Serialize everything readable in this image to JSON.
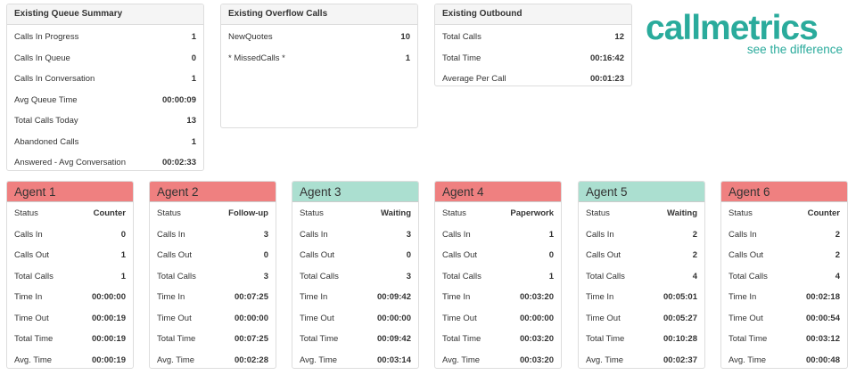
{
  "queue_summary": {
    "title": "Existing Queue Summary",
    "rows": [
      {
        "label": "Calls In Progress",
        "value": "1"
      },
      {
        "label": "Calls In Queue",
        "value": "0"
      },
      {
        "label": "Calls In Conversation",
        "value": "1"
      },
      {
        "label": "Avg Queue Time",
        "value": "00:00:09"
      },
      {
        "label": "Total Calls Today",
        "value": "13"
      },
      {
        "label": "Abandoned Calls",
        "value": "1"
      },
      {
        "label": "Answered - Avg Conversation",
        "value": "00:02:33"
      }
    ]
  },
  "overflow_calls": {
    "title": "Existing Overflow Calls",
    "rows": [
      {
        "label": "NewQuotes",
        "value": "10"
      },
      {
        "label": "* MissedCalls *",
        "value": "1"
      }
    ]
  },
  "outbound": {
    "title": "Existing Outbound",
    "rows": [
      {
        "label": "Total Calls",
        "value": "12"
      },
      {
        "label": "Total Time",
        "value": "00:16:42"
      },
      {
        "label": "Average Per Call",
        "value": "00:01:23"
      }
    ]
  },
  "logo": {
    "name": "callmetrics",
    "tagline": "see the difference",
    "color": "#2aab9c"
  },
  "status_colors": {
    "busy": "#ef8080",
    "waiting": "#abdfd0"
  },
  "agents": [
    {
      "name": "Agent 1",
      "status_color": "red",
      "rows": [
        {
          "label": "Status",
          "value": "Counter"
        },
        {
          "label": "Calls In",
          "value": "0"
        },
        {
          "label": "Calls Out",
          "value": "1"
        },
        {
          "label": "Total Calls",
          "value": "1"
        },
        {
          "label": "Time In",
          "value": "00:00:00"
        },
        {
          "label": "Time Out",
          "value": "00:00:19"
        },
        {
          "label": "Total Time",
          "value": "00:00:19"
        },
        {
          "label": "Avg. Time",
          "value": "00:00:19"
        }
      ]
    },
    {
      "name": "Agent 2",
      "status_color": "red",
      "rows": [
        {
          "label": "Status",
          "value": "Follow-up"
        },
        {
          "label": "Calls In",
          "value": "3"
        },
        {
          "label": "Calls Out",
          "value": "0"
        },
        {
          "label": "Total Calls",
          "value": "3"
        },
        {
          "label": "Time In",
          "value": "00:07:25"
        },
        {
          "label": "Time Out",
          "value": "00:00:00"
        },
        {
          "label": "Total Time",
          "value": "00:07:25"
        },
        {
          "label": "Avg. Time",
          "value": "00:02:28"
        }
      ]
    },
    {
      "name": "Agent 3",
      "status_color": "green",
      "rows": [
        {
          "label": "Status",
          "value": "Waiting"
        },
        {
          "label": "Calls In",
          "value": "3"
        },
        {
          "label": "Calls Out",
          "value": "0"
        },
        {
          "label": "Total Calls",
          "value": "3"
        },
        {
          "label": "Time In",
          "value": "00:09:42"
        },
        {
          "label": "Time Out",
          "value": "00:00:00"
        },
        {
          "label": "Total Time",
          "value": "00:09:42"
        },
        {
          "label": "Avg. Time",
          "value": "00:03:14"
        }
      ]
    },
    {
      "name": "Agent 4",
      "status_color": "red",
      "rows": [
        {
          "label": "Status",
          "value": "Paperwork"
        },
        {
          "label": "Calls In",
          "value": "1"
        },
        {
          "label": "Calls Out",
          "value": "0"
        },
        {
          "label": "Total Calls",
          "value": "1"
        },
        {
          "label": "Time In",
          "value": "00:03:20"
        },
        {
          "label": "Time Out",
          "value": "00:00:00"
        },
        {
          "label": "Total Time",
          "value": "00:03:20"
        },
        {
          "label": "Avg. Time",
          "value": "00:03:20"
        }
      ]
    },
    {
      "name": "Agent 5",
      "status_color": "green",
      "rows": [
        {
          "label": "Status",
          "value": "Waiting"
        },
        {
          "label": "Calls In",
          "value": "2"
        },
        {
          "label": "Calls Out",
          "value": "2"
        },
        {
          "label": "Total Calls",
          "value": "4"
        },
        {
          "label": "Time In",
          "value": "00:05:01"
        },
        {
          "label": "Time Out",
          "value": "00:05:27"
        },
        {
          "label": "Total Time",
          "value": "00:10:28"
        },
        {
          "label": "Avg. Time",
          "value": "00:02:37"
        }
      ]
    },
    {
      "name": "Agent 6",
      "status_color": "red",
      "rows": [
        {
          "label": "Status",
          "value": "Counter"
        },
        {
          "label": "Calls In",
          "value": "2"
        },
        {
          "label": "Calls Out",
          "value": "2"
        },
        {
          "label": "Total Calls",
          "value": "4"
        },
        {
          "label": "Time In",
          "value": "00:02:18"
        },
        {
          "label": "Time Out",
          "value": "00:00:54"
        },
        {
          "label": "Total Time",
          "value": "00:03:12"
        },
        {
          "label": "Avg. Time",
          "value": "00:00:48"
        }
      ]
    }
  ]
}
